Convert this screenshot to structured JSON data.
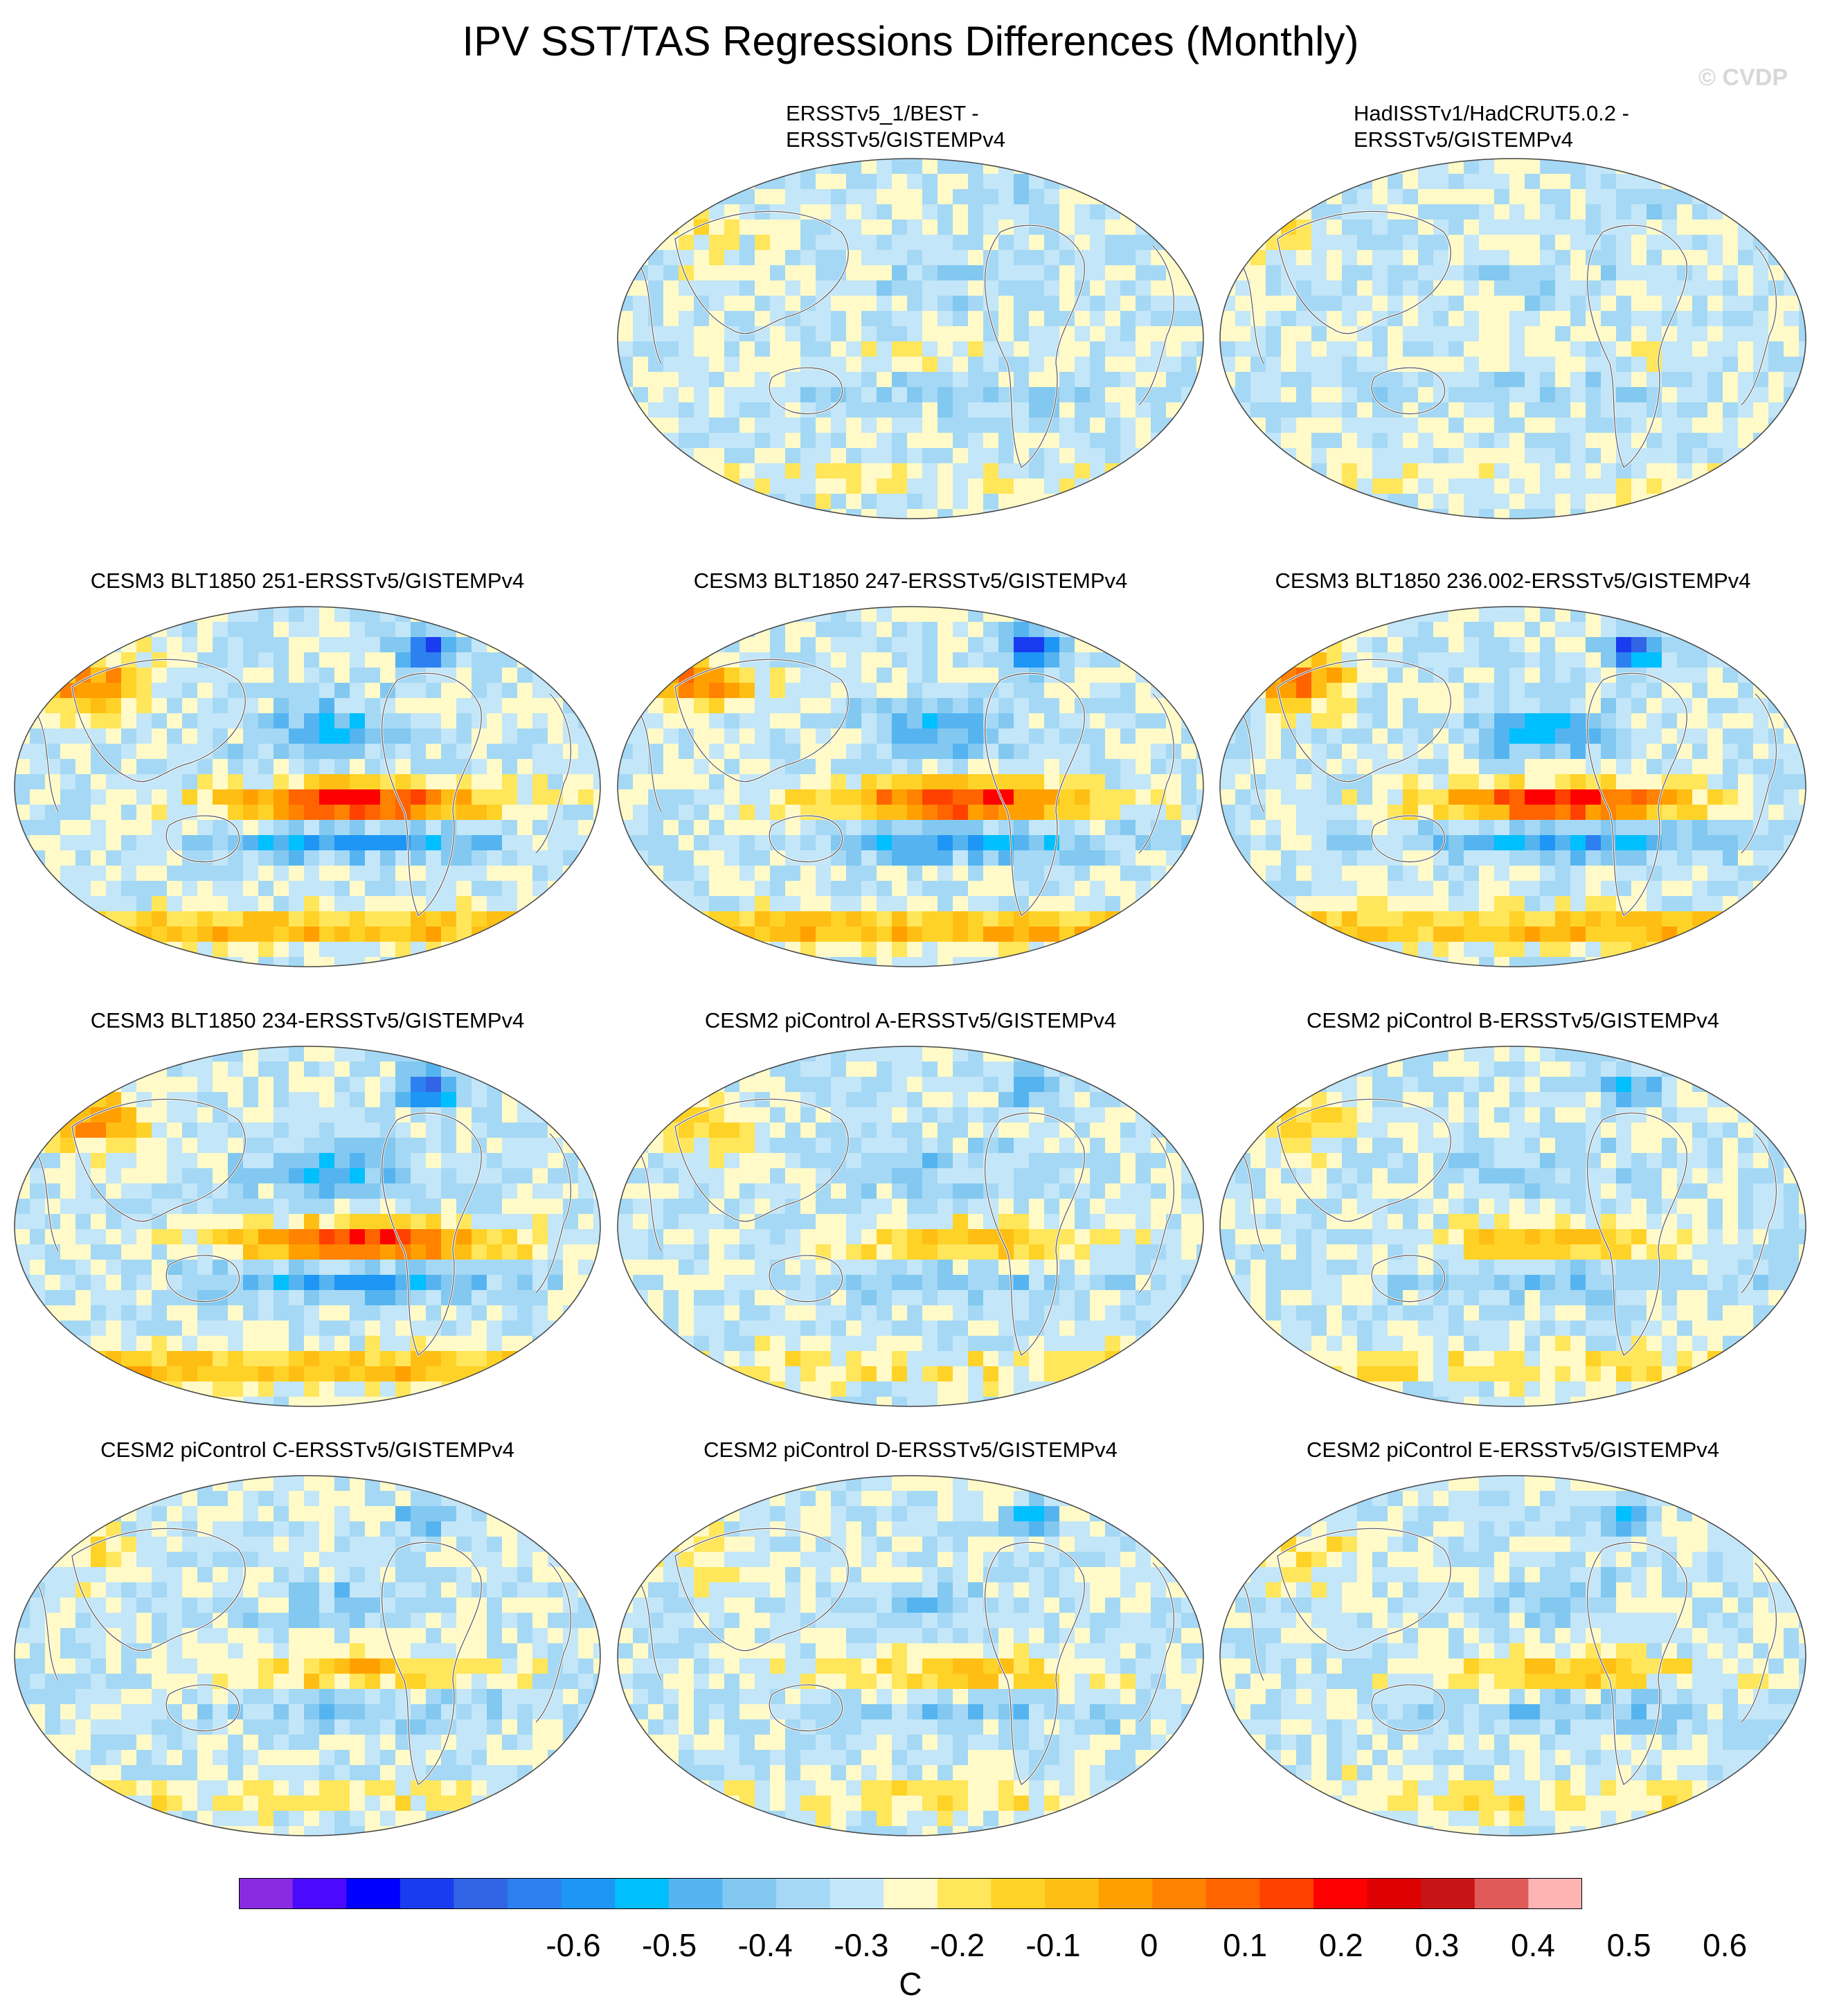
{
  "title": "IPV SST/TAS Regressions Differences (Monthly)",
  "watermark": "© CVDP",
  "panels": [
    {
      "id": "p2",
      "title_lines": [
        "ERSSTv5_1/BEST -",
        "ERSSTv5/GISTEMPv4"
      ],
      "pattern": "obs",
      "seed": 3
    },
    {
      "id": "p3",
      "title_lines": [
        "HadISSTv1/HadCRUT5.0.2 -",
        "ERSSTv5/GISTEMPv4"
      ],
      "pattern": "obs",
      "seed": 7
    },
    {
      "id": "p4",
      "title_lines": [
        "CESM3 BLT1850 251-ERSSTv5/GISTEMPv4"
      ],
      "pattern": "strong",
      "seed": 11
    },
    {
      "id": "p5",
      "title_lines": [
        "CESM3 BLT1850 247-ERSSTv5/GISTEMPv4"
      ],
      "pattern": "strong",
      "seed": 13
    },
    {
      "id": "p6",
      "title_lines": [
        "CESM3 BLT1850 236.002-ERSSTv5/GISTEMPv4"
      ],
      "pattern": "strong",
      "seed": 17
    },
    {
      "id": "p7",
      "title_lines": [
        "CESM3 BLT1850 234-ERSSTv5/GISTEMPv4"
      ],
      "pattern": "strong",
      "seed": 19
    },
    {
      "id": "p8",
      "title_lines": [
        "CESM2 piControl A-ERSSTv5/GISTEMPv4"
      ],
      "pattern": "moderate",
      "seed": 23
    },
    {
      "id": "p9",
      "title_lines": [
        "CESM2 piControl B-ERSSTv5/GISTEMPv4"
      ],
      "pattern": "moderate",
      "seed": 29
    },
    {
      "id": "p10",
      "title_lines": [
        "CESM2 piControl C-ERSSTv5/GISTEMPv4"
      ],
      "pattern": "weak",
      "seed": 31
    },
    {
      "id": "p11",
      "title_lines": [
        "CESM2 piControl D-ERSSTv5/GISTEMPv4"
      ],
      "pattern": "weak",
      "seed": 37
    },
    {
      "id": "p12",
      "title_lines": [
        "CESM2 piControl E-ERSSTv5/GISTEMPv4"
      ],
      "pattern": "weak",
      "seed": 41
    }
  ],
  "colorbar": {
    "colors": [
      "#8a2be2",
      "#4b0aff",
      "#0000ff",
      "#1a3cf0",
      "#3264e6",
      "#2d80f0",
      "#1e96f5",
      "#00bfff",
      "#55b4f0",
      "#82c8f0",
      "#a5d8f5",
      "#c3e6f8",
      "#fffac8",
      "#ffe65a",
      "#ffd228",
      "#ffbe14",
      "#ffa000",
      "#ff8200",
      "#ff6400",
      "#ff4100",
      "#ff0000",
      "#dc0000",
      "#c81414",
      "#e15a5a",
      "#ffb4b4"
    ],
    "tick_labels": [
      "-0.6",
      "-0.5",
      "-0.4",
      "-0.3",
      "-0.2",
      "-0.1",
      "0",
      "0.1",
      "0.2",
      "0.3",
      "0.4",
      "0.5",
      "0.6"
    ],
    "units": "C"
  }
}
